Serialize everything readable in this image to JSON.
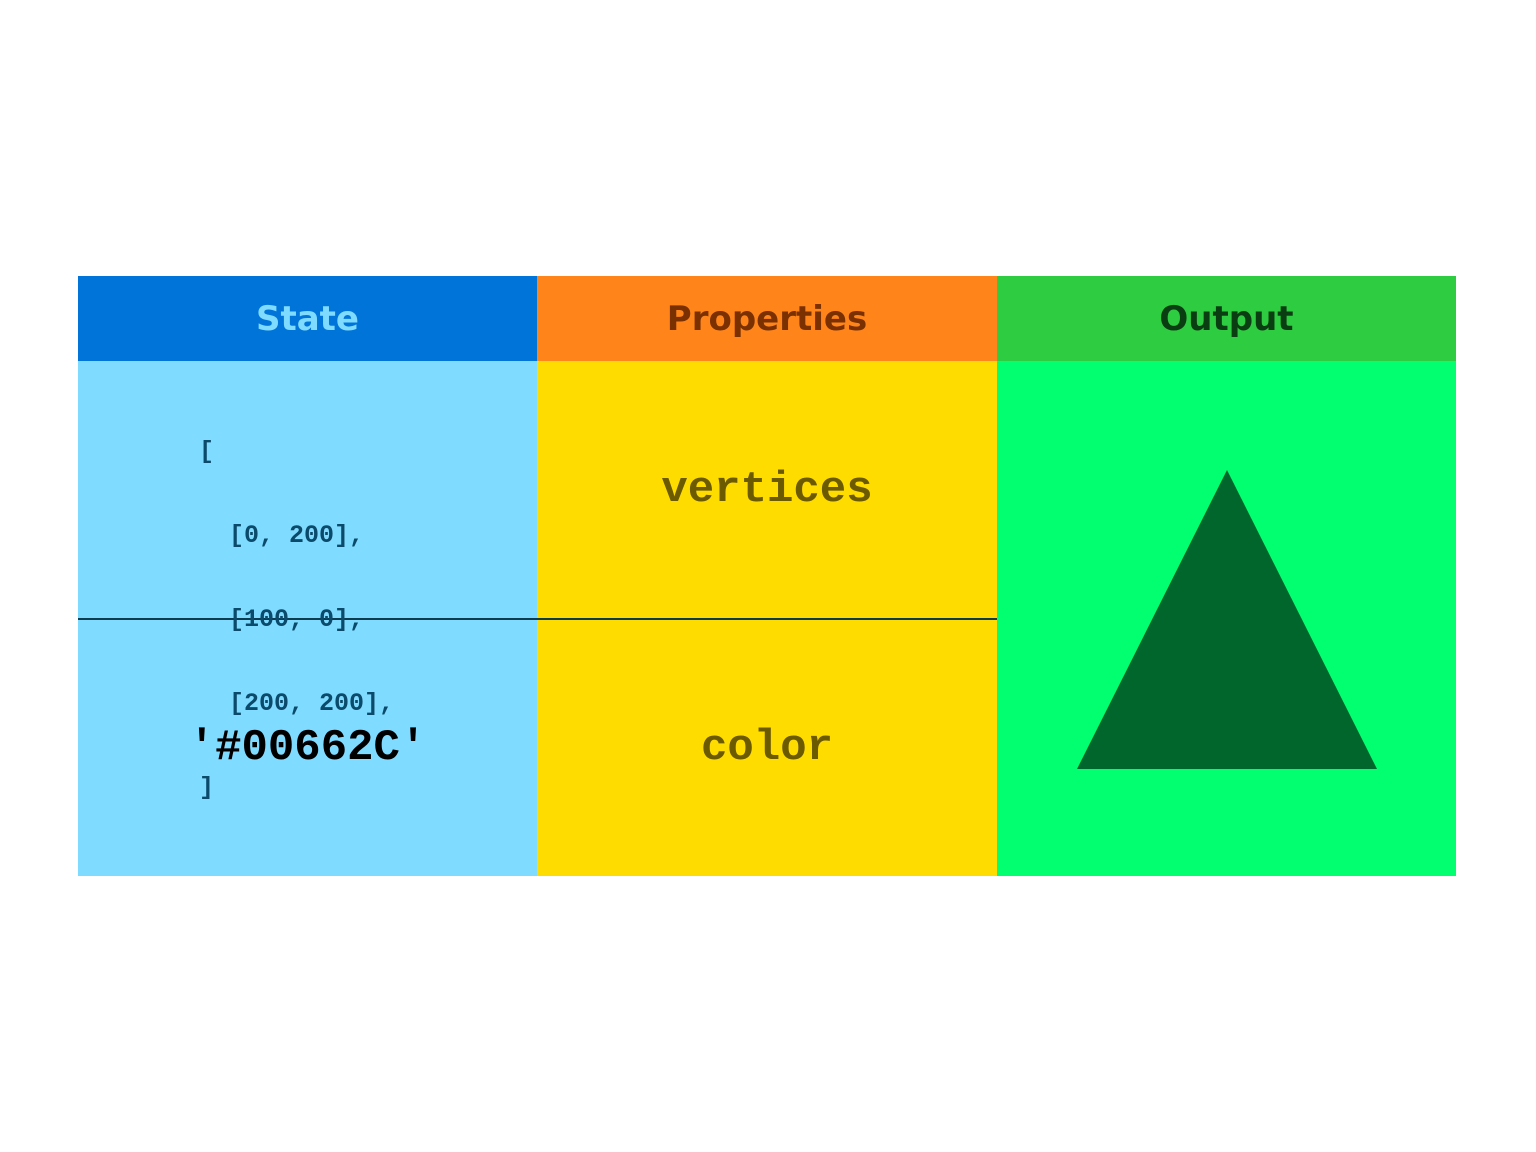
{
  "headers": [
    "State",
    "Properties",
    "Output"
  ],
  "rows": [
    {
      "state_lines": [
        "[",
        "  [0, 200],",
        "  [100, 0],",
        "  [200, 200],",
        "]"
      ],
      "property": "vertices"
    },
    {
      "state_lines": [
        "'#00662C'"
      ],
      "property": "color"
    }
  ]
}
